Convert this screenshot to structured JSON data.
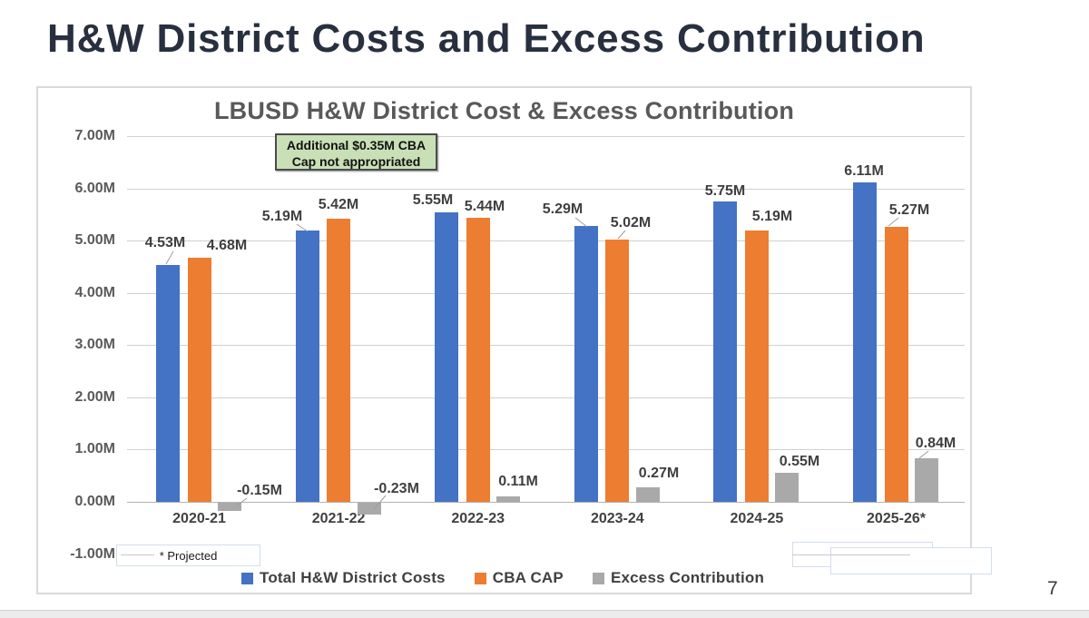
{
  "page": {
    "title": "H&W District Costs and Excess Contribution",
    "page_number": "7"
  },
  "chart": {
    "title": "LBUSD H&W District Cost & Excess Contribution",
    "annotation": {
      "line1": "Additional $0.35M CBA",
      "line2": "Cap not appropriated"
    },
    "footnote": "* Projected"
  },
  "chart_data": {
    "type": "bar",
    "title": "LBUSD H&W District Cost & Excess Contribution",
    "categories": [
      "2020-21",
      "2021-22",
      "2022-23",
      "2023-24",
      "2024-25",
      "2025-26*"
    ],
    "series": [
      {
        "name": "Total H&W District Costs",
        "color": "#4472C4",
        "values": [
          4.53,
          5.19,
          5.55,
          5.29,
          5.75,
          6.11
        ],
        "labels": [
          "4.53M",
          "5.19M",
          "5.55M",
          "5.29M",
          "5.75M",
          "6.11M"
        ]
      },
      {
        "name": "CBA CAP",
        "color": "#ED7D31",
        "values": [
          4.68,
          5.42,
          5.44,
          5.02,
          5.19,
          5.27
        ],
        "labels": [
          "4.68M",
          "5.42M",
          "5.44M",
          "5.02M",
          "5.19M",
          "5.27M"
        ]
      },
      {
        "name": "Excess Contribution",
        "color": "#A9A9A9",
        "values": [
          -0.15,
          -0.23,
          0.11,
          0.27,
          0.55,
          0.84
        ],
        "labels": [
          "-0.15M",
          "-0.23M",
          "0.11M",
          "0.27M",
          "0.55M",
          "0.84M"
        ]
      }
    ],
    "y_ticks": [
      "7.00M",
      "6.00M",
      "5.00M",
      "4.00M",
      "3.00M",
      "2.00M",
      "1.00M",
      "0.00M",
      "-1.00M"
    ],
    "ylim": [
      -1,
      7
    ],
    "grid": true,
    "legend_position": "bottom",
    "annotation": "Additional $0.35M CBA Cap not appropriated",
    "footnote": "* Projected"
  }
}
